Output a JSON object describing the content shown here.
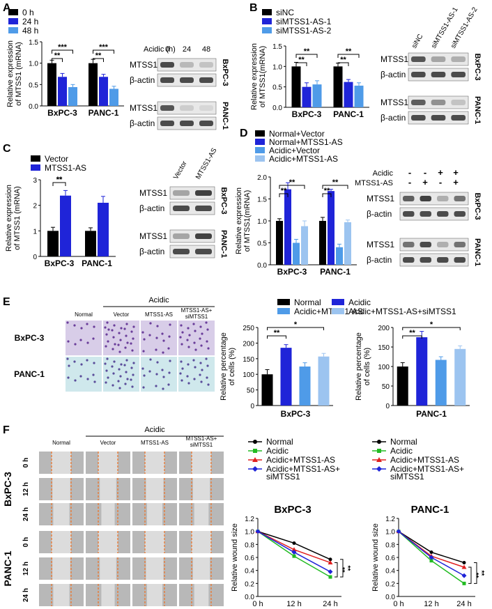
{
  "panels": {
    "A": {
      "letter": "A",
      "chart": {
        "ylabel": "Relative expression\nof MTSS1 (mRNA)",
        "yticks": [
          "0.0",
          "0.5",
          "1.0",
          "1.5"
        ],
        "ylim": [
          0,
          1.5
        ],
        "categories": [
          "BxPC-3",
          "PANC-1"
        ],
        "series": [
          {
            "name": "0 h",
            "color": "#000000",
            "values": [
              1.0,
              1.0
            ],
            "errors": [
              0.07,
              0.09
            ]
          },
          {
            "name": "24 h",
            "color": "#1f24d8",
            "values": [
              0.68,
              0.68
            ],
            "errors": [
              0.08,
              0.06
            ]
          },
          {
            "name": "48 h",
            "color": "#4f9be8",
            "values": [
              0.44,
              0.4
            ],
            "errors": [
              0.06,
              0.06
            ]
          }
        ],
        "sig": [
          "**",
          "***",
          "**",
          "***"
        ]
      },
      "blot": {
        "header_label": "Acidic (h)",
        "lanes": [
          "0",
          "24",
          "48"
        ],
        "groups": [
          {
            "cell": "BxPC-3",
            "rows": [
              {
                "label": "MTSS1",
                "intensity": [
                  0.9,
                  0.35,
                  0.3
                ]
              },
              {
                "label": "β-actin",
                "intensity": [
                  0.9,
                  0.9,
                  0.9
                ]
              }
            ]
          },
          {
            "cell": "PANC-1",
            "rows": [
              {
                "label": "MTSS1",
                "intensity": [
                  0.85,
                  0.25,
                  0.2
                ]
              },
              {
                "label": "β-actin",
                "intensity": [
                  0.9,
                  0.9,
                  0.9
                ]
              }
            ]
          }
        ]
      }
    },
    "B": {
      "letter": "B",
      "chart": {
        "ylabel": "Relative expression\nof MTSS1(mRNA)",
        "yticks": [
          "0.0",
          "0.5",
          "1.0",
          "1.5"
        ],
        "ylim": [
          0,
          1.5
        ],
        "categories": [
          "BxPC-3",
          "PANC-1"
        ],
        "series": [
          {
            "name": "siNC",
            "color": "#000000",
            "values": [
              1.0,
              1.0
            ],
            "errors": [
              0.1,
              0.08
            ]
          },
          {
            "name": "siMTSS1-AS-1",
            "color": "#1f24d8",
            "values": [
              0.5,
              0.62
            ],
            "errors": [
              0.1,
              0.06
            ]
          },
          {
            "name": "siMTSS1-AS-2",
            "color": "#4f9be8",
            "values": [
              0.56,
              0.53
            ],
            "errors": [
              0.09,
              0.07
            ]
          }
        ],
        "sig": [
          "**",
          "**",
          "**",
          "**"
        ]
      },
      "blot": {
        "header_label": "",
        "lanes": [
          "siNC",
          "siMTSS1-AS-1",
          "siMTSS1-AS-2"
        ],
        "groups": [
          {
            "cell": "BxPC-3",
            "rows": [
              {
                "label": "MTSS1",
                "intensity": [
                  0.85,
                  0.45,
                  0.4
                ]
              },
              {
                "label": "β-actin",
                "intensity": [
                  0.9,
                  0.9,
                  0.9
                ]
              }
            ]
          },
          {
            "cell": "PANC-1",
            "rows": [
              {
                "label": "MTSS1",
                "intensity": [
                  0.8,
                  0.55,
                  0.3
                ]
              },
              {
                "label": "β-actin",
                "intensity": [
                  0.9,
                  0.9,
                  0.9
                ]
              }
            ]
          }
        ]
      }
    },
    "C": {
      "letter": "C",
      "chart": {
        "ylabel": "Relative expression\nof MTSS1 (mRNA)",
        "yticks": [
          "0",
          "1",
          "2",
          "3"
        ],
        "ylim": [
          0,
          3
        ],
        "categories": [
          "BxPC-3",
          "PANC-1"
        ],
        "series": [
          {
            "name": "Vector",
            "color": "#000000",
            "values": [
              1.0,
              1.0
            ],
            "errors": [
              0.14,
              0.12
            ]
          },
          {
            "name": "MTSS1-AS",
            "color": "#1f24d8",
            "values": [
              2.38,
              2.1
            ],
            "errors": [
              0.2,
              0.25
            ]
          }
        ],
        "sig": [
          "**",
          "**"
        ]
      },
      "blot": {
        "header_label": "",
        "lanes": [
          "Vector",
          "MTSS1-AS"
        ],
        "groups": [
          {
            "cell": "BxPC-3",
            "rows": [
              {
                "label": "MTSS1",
                "intensity": [
                  0.45,
                  0.95
                ]
              },
              {
                "label": "β-actin",
                "intensity": [
                  0.9,
                  0.9
                ]
              }
            ]
          },
          {
            "cell": "PANC-1",
            "rows": [
              {
                "label": "MTSS1",
                "intensity": [
                  0.45,
                  0.95
                ]
              },
              {
                "label": "β-actin",
                "intensity": [
                  0.9,
                  0.9
                ]
              }
            ]
          }
        ]
      }
    },
    "D": {
      "letter": "D",
      "chart": {
        "ylabel": "Relative expression\nof MTSS1(mRNA)",
        "yticks": [
          "0.0",
          "0.5",
          "1.0",
          "1.5",
          "2.0"
        ],
        "ylim": [
          0,
          2.0
        ],
        "categories": [
          "BxPC-3",
          "PANC-1"
        ],
        "series": [
          {
            "name": "Normal+Vector",
            "color": "#000000",
            "values": [
              1.0,
              1.0
            ],
            "errors": [
              0.05,
              0.08
            ]
          },
          {
            "name": "Normal+MTSS1-AS",
            "color": "#1f24d8",
            "values": [
              1.72,
              1.68
            ],
            "errors": [
              0.15,
              0.04
            ]
          },
          {
            "name": "Acidic+Vector",
            "color": "#4f9be8",
            "values": [
              0.5,
              0.4
            ],
            "errors": [
              0.08,
              0.07
            ]
          },
          {
            "name": "Acidic+MTSS1-AS",
            "color": "#9cc4f0",
            "values": [
              0.88,
              0.97
            ],
            "errors": [
              0.12,
              0.05
            ]
          }
        ],
        "sig": [
          "**",
          "**",
          "**",
          "**"
        ]
      },
      "blot": {
        "conditions": [
          {
            "label": "Acidic",
            "marks": [
              "-",
              "-",
              "+",
              "+"
            ]
          },
          {
            "label": "MTSS1-AS",
            "marks": [
              "-",
              "+",
              "-",
              "+"
            ]
          }
        ],
        "groups": [
          {
            "cell": "BxPC-3",
            "rows": [
              {
                "label": "MTSS1",
                "intensity": [
                  0.8,
                  0.95,
                  0.4,
                  0.7
                ]
              },
              {
                "label": "β-actin",
                "intensity": [
                  0.9,
                  0.9,
                  0.9,
                  0.9
                ]
              }
            ]
          },
          {
            "cell": "PANC-1",
            "rows": [
              {
                "label": "MTSS1",
                "intensity": [
                  0.7,
                  0.9,
                  0.4,
                  0.7
                ]
              },
              {
                "label": "β-actin",
                "intensity": [
                  0.9,
                  0.9,
                  0.9,
                  0.9
                ]
              }
            ]
          }
        ]
      }
    },
    "E": {
      "letter": "E",
      "acidic_label": "Acidic",
      "columns": [
        "Normal",
        "Vector",
        "MTSS1-AS",
        "MTSS1-AS+\nsiMTSS1"
      ],
      "rows": [
        "BxPC-3",
        "PANC-1"
      ],
      "legend": [
        "Normal",
        "Acidic",
        "Acidic+MTSS1-AS",
        "Acidic+MTSS1-AS+siMTSS1"
      ],
      "charts": [
        {
          "title": "BxPC-3",
          "ylabel": "Relative percentage\nof cells (%)",
          "yticks": [
            "0",
            "50",
            "100",
            "150",
            "200",
            "250"
          ],
          "ylim": [
            0,
            250
          ],
          "categories": [
            "Normal",
            "Acidic",
            "Acidic+MTSS1-AS",
            "Acidic+MTSS1-AS+siMTSS1"
          ],
          "values": [
            100,
            185,
            125,
            157
          ],
          "errors": [
            15,
            10,
            12,
            10
          ],
          "colors": [
            "#000000",
            "#1f24d8",
            "#4f9be8",
            "#9cc4f0"
          ],
          "sig": [
            "**",
            "*"
          ]
        },
        {
          "title": "PANC-1",
          "ylabel": "Relative percentage\nof cells (%)",
          "yticks": [
            "0",
            "50",
            "100",
            "150",
            "200"
          ],
          "ylim": [
            0,
            200
          ],
          "categories": [
            "Normal",
            "Acidic",
            "Acidic+MTSS1-AS",
            "Acidic+MTSS1-AS+siMTSS1"
          ],
          "values": [
            100,
            175,
            117,
            145
          ],
          "errors": [
            10,
            15,
            8,
            8
          ],
          "colors": [
            "#000000",
            "#1f24d8",
            "#4f9be8",
            "#9cc4f0"
          ],
          "sig": [
            "**",
            "*"
          ]
        }
      ]
    },
    "F": {
      "letter": "F",
      "acidic_label": "Acidic",
      "columns": [
        "Normal",
        "Vector",
        "MTSS1-AS",
        "MTSS1-AS+\nsiMTSS1"
      ],
      "cells": [
        "BxPC-3",
        "PANC-1"
      ],
      "times": [
        "0 h",
        "12 h",
        "24 h"
      ],
      "legend": [
        {
          "label": "Normal",
          "color": "#000000",
          "marker": "circle"
        },
        {
          "label": "Acidic",
          "color": "#22bb22",
          "marker": "square"
        },
        {
          "label": "Acidic+MTSS1-AS",
          "color": "#e02020",
          "marker": "triangle"
        },
        {
          "label": "Acidic+MTSS1-AS+\nsiMTSS1",
          "color": "#1f24d8",
          "marker": "diamond"
        }
      ],
      "charts": [
        {
          "title": "BxPC-3",
          "ylabel": "Relative wound size",
          "yticks": [
            "0.0",
            "0.2",
            "0.4",
            "0.6",
            "0.8",
            "1.0",
            "1.2"
          ],
          "ylim": [
            0,
            1.2
          ],
          "x": [
            "0 h",
            "12 h",
            "24 h"
          ],
          "series": [
            [
              1.0,
              0.82,
              0.57
            ],
            [
              1.0,
              0.62,
              0.3
            ],
            [
              1.0,
              0.72,
              0.52
            ],
            [
              1.0,
              0.68,
              0.38
            ]
          ],
          "sig": [
            "**",
            "**"
          ]
        },
        {
          "title": "PANC-1",
          "ylabel": "Relative wound size",
          "yticks": [
            "0.0",
            "0.2",
            "0.4",
            "0.6",
            "0.8",
            "1.0",
            "1.2"
          ],
          "ylim": [
            0,
            1.2
          ],
          "x": [
            "0 h",
            "12 h",
            "24 h"
          ],
          "series": [
            [
              1.0,
              0.68,
              0.52
            ],
            [
              1.0,
              0.55,
              0.2
            ],
            [
              1.0,
              0.62,
              0.45
            ],
            [
              1.0,
              0.6,
              0.32
            ]
          ],
          "sig": [
            "**",
            "**"
          ]
        }
      ]
    }
  }
}
